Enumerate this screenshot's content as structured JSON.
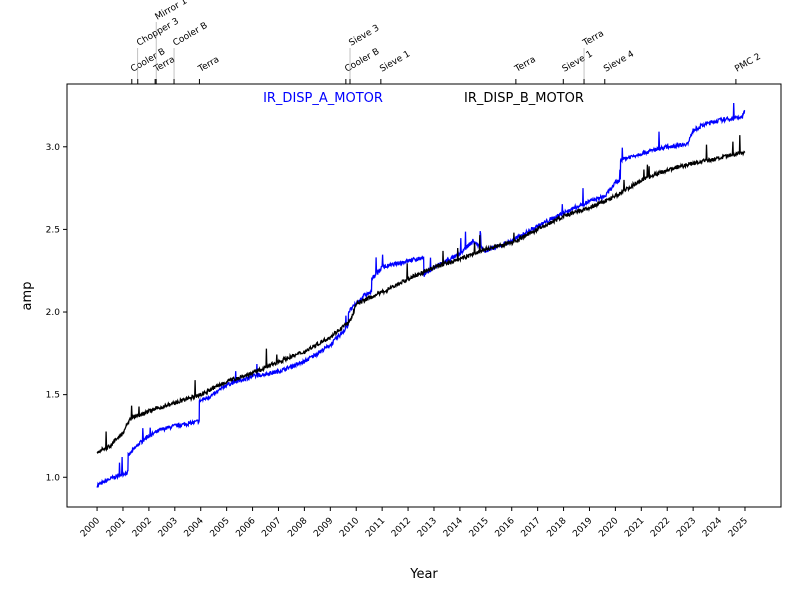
{
  "chart_data": {
    "type": "line",
    "title": "",
    "xlabel": "Year",
    "ylabel": "amp",
    "xlim": [
      1998.84,
      2026.39
    ],
    "ylim": [
      0.82,
      3.38
    ],
    "grid": false,
    "legend_placement": "top-center",
    "x_ticks": [
      "2000",
      "2001",
      "2002",
      "2003",
      "2004",
      "2005",
      "2006",
      "2007",
      "2008",
      "2009",
      "2010",
      "2011",
      "2012",
      "2013",
      "2014",
      "2015",
      "2016",
      "2017",
      "2018",
      "2019",
      "2020",
      "2021",
      "2022",
      "2023",
      "2024",
      "2025"
    ],
    "y_ticks": [
      "1.0",
      "1.5",
      "2.0",
      "2.5",
      "3.0"
    ],
    "events": [
      {
        "year": 2001.34,
        "label": "Cooler B"
      },
      {
        "year": 2001.57,
        "label": "Chopper 3"
      },
      {
        "year": 2002.24,
        "label": "Terra"
      },
      {
        "year": 2002.28,
        "label": "Mirror 1"
      },
      {
        "year": 2002.97,
        "label": "Cooler B"
      },
      {
        "year": 2003.95,
        "label": "Terra"
      },
      {
        "year": 2009.6,
        "label": "Cooler B"
      },
      {
        "year": 2009.76,
        "label": "Sieve 3"
      },
      {
        "year": 2010.95,
        "label": "Sieve 1"
      },
      {
        "year": 2016.16,
        "label": "Terra"
      },
      {
        "year": 2017.99,
        "label": "Sieve 1"
      },
      {
        "year": 2018.79,
        "label": "Terra"
      },
      {
        "year": 2019.59,
        "label": "Sieve 4"
      },
      {
        "year": 2024.65,
        "label": "PMC 2"
      }
    ],
    "series": [
      {
        "name": "IR_DISP_A_MOTOR",
        "color": "#0000ff",
        "x": [
          2000.0,
          2000.5,
          2001.0,
          2001.19,
          2001.2,
          2001.6,
          2002.0,
          2002.5,
          2003.0,
          2003.7,
          2003.94,
          2003.95,
          2004.5,
          2005.0,
          2006.0,
          2007.0,
          2008.0,
          2009.0,
          2009.6,
          2009.69,
          2009.7,
          2010.0,
          2010.3,
          2010.59,
          2010.6,
          2011.0,
          2012.0,
          2012.6,
          2012.61,
          2013.0,
          2014.0,
          2014.5,
          2015.0,
          2016.0,
          2017.0,
          2018.0,
          2019.0,
          2019.6,
          2020.0,
          2020.19,
          2020.2,
          2021.0,
          2022.0,
          2022.8,
          2023.0,
          2023.5,
          2024.0,
          2024.9,
          2025.0
        ],
        "y": [
          0.95,
          0.99,
          1.02,
          1.03,
          1.13,
          1.2,
          1.25,
          1.29,
          1.31,
          1.33,
          1.34,
          1.46,
          1.5,
          1.56,
          1.61,
          1.64,
          1.7,
          1.8,
          1.9,
          1.92,
          2.0,
          2.05,
          2.1,
          2.12,
          2.2,
          2.27,
          2.31,
          2.33,
          2.22,
          2.27,
          2.35,
          2.43,
          2.37,
          2.43,
          2.52,
          2.6,
          2.67,
          2.7,
          2.78,
          2.8,
          2.92,
          2.96,
          3.0,
          3.02,
          3.1,
          3.14,
          3.16,
          3.18,
          3.22
        ]
      },
      {
        "name": "IR_DISP_B_MOTOR",
        "color": "#000000",
        "x": [
          2000.0,
          2000.5,
          2001.0,
          2001.3,
          2002.0,
          2003.0,
          2004.0,
          2005.0,
          2006.0,
          2007.0,
          2008.0,
          2009.0,
          2009.8,
          2010.0,
          2011.0,
          2012.0,
          2013.0,
          2014.0,
          2015.0,
          2016.0,
          2017.0,
          2018.0,
          2019.0,
          2020.0,
          2021.0,
          2022.0,
          2023.0,
          2024.0,
          2025.0
        ],
        "y": [
          1.15,
          1.19,
          1.27,
          1.36,
          1.4,
          1.45,
          1.5,
          1.58,
          1.63,
          1.7,
          1.76,
          1.85,
          1.95,
          2.05,
          2.12,
          2.2,
          2.27,
          2.32,
          2.38,
          2.42,
          2.5,
          2.58,
          2.63,
          2.7,
          2.8,
          2.86,
          2.9,
          2.93,
          2.97
        ]
      }
    ]
  }
}
